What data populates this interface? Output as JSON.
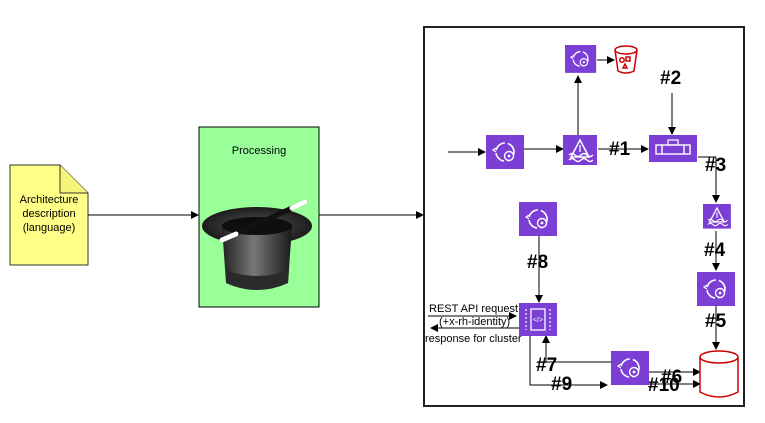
{
  "document": {
    "label_line1": "Architecture",
    "label_line2": "description",
    "label_line3": "(language)"
  },
  "processing": {
    "title": "Processing"
  },
  "steps": {
    "s1": "#1",
    "s2": "#2",
    "s3": "#3",
    "s4": "#4",
    "s5": "#5",
    "s6": "#6",
    "s7": "#7",
    "s8": "#8",
    "s9": "#9",
    "s10": "#10"
  },
  "api": {
    "request_line1": "REST API request",
    "request_line2": "(+x-rh-identity)",
    "response": "response for cluster"
  },
  "colors": {
    "document_fill": "#ffff88",
    "processing_fill": "#99ff99",
    "service_icon": "#7b3fd6",
    "bucket_red": "#cc0000",
    "database_red": "#cc0000"
  },
  "icons": {
    "hat": "magic-hat-icon",
    "service": "lambda-gear-icon",
    "stream": "kinesis-stream-icon",
    "pipe": "pipeline-icon",
    "gateway": "api-gateway-icon",
    "bucket": "s3-bucket-icon",
    "database": "database-icon"
  }
}
